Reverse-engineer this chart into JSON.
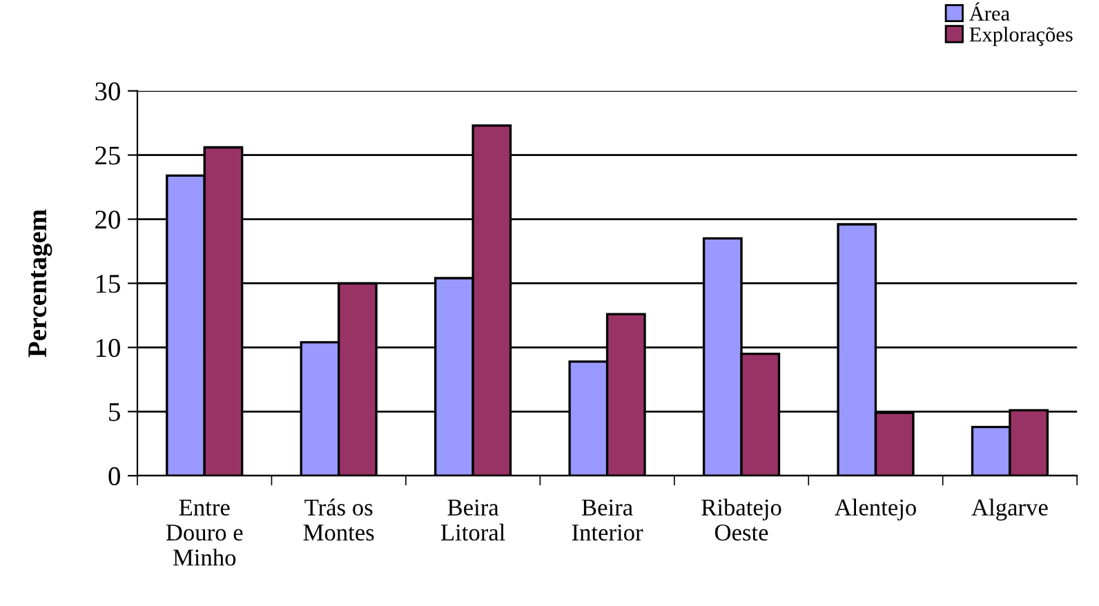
{
  "chart_data": {
    "type": "bar",
    "ylabel": "Percentagem",
    "categories": [
      "Entre\nDouro e\nMinho",
      "Trás os\nMontes",
      "Beira\nLitoral",
      "Beira\nInterior",
      "Ribatejo\nOeste",
      "Alentejo",
      "Algarve"
    ],
    "series": [
      {
        "name": "Área",
        "color": "#9999ff",
        "values": [
          23.4,
          10.4,
          15.4,
          8.9,
          18.5,
          19.6,
          3.8
        ]
      },
      {
        "name": "Explorações",
        "color": "#993366",
        "values": [
          25.6,
          15.0,
          27.3,
          12.6,
          9.5,
          4.9,
          5.1
        ]
      }
    ],
    "ylim": [
      0,
      30
    ],
    "yticks": [
      0,
      5,
      10,
      15,
      20,
      25,
      30
    ],
    "grid": "y",
    "legend": "top right"
  }
}
